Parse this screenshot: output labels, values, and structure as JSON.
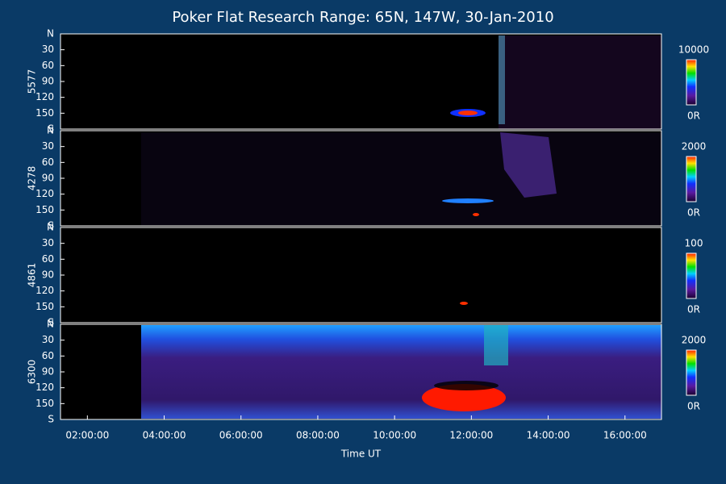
{
  "title": "Poker Flat Research Range: 65N, 147W, 30-Jan-2010",
  "chart_data": [
    {
      "type": "keogram",
      "ylabel": "5577",
      "ylim": [
        0,
        180
      ],
      "yticks": [
        {
          "value": 0,
          "label": "N"
        },
        30,
        60,
        90,
        120,
        150,
        {
          "value": 180,
          "label": "S"
        }
      ],
      "clim": [
        0,
        10000
      ],
      "cticks": [
        {
          "value": 0,
          "label": "0R"
        },
        10000
      ]
    },
    {
      "type": "keogram",
      "ylabel": "4278",
      "ylim": [
        0,
        180
      ],
      "yticks": [
        {
          "value": 0,
          "label": "N"
        },
        30,
        60,
        90,
        120,
        150,
        {
          "value": 180,
          "label": "S"
        }
      ],
      "clim": [
        0,
        2000
      ],
      "cticks": [
        {
          "value": 0,
          "label": "0R"
        },
        2000
      ]
    },
    {
      "type": "keogram",
      "ylabel": "4861",
      "ylim": [
        0,
        180
      ],
      "yticks": [
        {
          "value": 0,
          "label": "N"
        },
        30,
        60,
        90,
        120,
        150,
        {
          "value": 180,
          "label": "S"
        }
      ],
      "clim": [
        0,
        100
      ],
      "cticks": [
        {
          "value": 0,
          "label": "0R"
        },
        100
      ]
    },
    {
      "type": "keogram",
      "ylabel": "6300",
      "ylim": [
        0,
        180
      ],
      "yticks": [
        {
          "value": 0,
          "label": "N"
        },
        30,
        60,
        90,
        120,
        150,
        {
          "value": 180,
          "label": "S"
        }
      ],
      "clim": [
        0,
        2000
      ],
      "cticks": [
        {
          "value": 0,
          "label": "0R"
        },
        2000
      ],
      "xlabel": "Time UT",
      "xlim": [
        1.3,
        16.95
      ],
      "xticks": [
        {
          "value": 2,
          "label": "02:00:00"
        },
        {
          "value": 4,
          "label": "04:00:00"
        },
        {
          "value": 6,
          "label": "06:00:00"
        },
        {
          "value": 8,
          "label": "08:00:00"
        },
        {
          "value": 10,
          "label": "10:00:00"
        },
        {
          "value": 12,
          "label": "12:00:00"
        },
        {
          "value": 14,
          "label": "14:00:00"
        },
        {
          "value": 16,
          "label": "16:00:00"
        }
      ]
    }
  ]
}
